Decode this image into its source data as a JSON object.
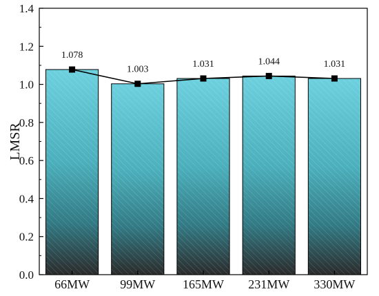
{
  "chart_data": {
    "type": "bar",
    "categories": [
      "66MW",
      "99MW",
      "165MW",
      "231MW",
      "330MW"
    ],
    "values": [
      1.078,
      1.003,
      1.031,
      1.044,
      1.031
    ],
    "data_labels": [
      "1.078",
      "1.003",
      "1.031",
      "1.044",
      "1.031"
    ],
    "overlay_line": true,
    "xlabel": "",
    "ylabel": "LMSR",
    "ylim": [
      0.0,
      1.4
    ],
    "yticks": [
      0.0,
      0.2,
      0.4,
      0.6,
      0.8,
      1.0,
      1.2,
      1.4
    ],
    "ytick_labels": [
      "0.0",
      "0.2",
      "0.4",
      "0.6",
      "0.8",
      "1.0",
      "1.2",
      "1.4"
    ],
    "grid": false,
    "colors": {
      "bar_top": "#6cd0de",
      "bar_mid": "#3a9aa6",
      "bar_bottom": "#2b2b2b",
      "line": "#000000",
      "marker": "#000000"
    }
  }
}
